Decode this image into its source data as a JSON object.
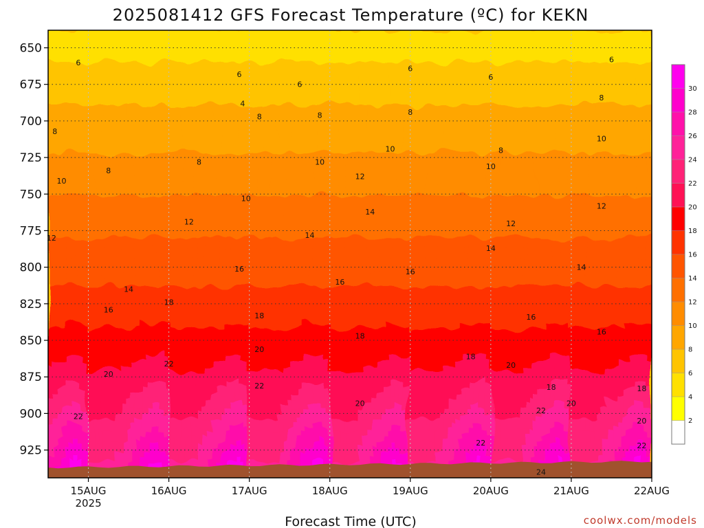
{
  "chart_data": {
    "type": "heatmap",
    "title": "2025081412 GFS Forecast Temperature (ºC) for KEKN",
    "xlabel": "Forecast Time (UTC)",
    "credit": "coolwx.com/models",
    "x_ticks": [
      {
        "label": "15AUG",
        "sub": "2025",
        "time": "2025-08-15T00"
      },
      {
        "label": "16AUG",
        "time": "2025-08-16T00"
      },
      {
        "label": "17AUG",
        "time": "2025-08-17T00"
      },
      {
        "label": "18AUG",
        "time": "2025-08-18T00"
      },
      {
        "label": "19AUG",
        "time": "2025-08-19T00"
      },
      {
        "label": "20AUG",
        "time": "2025-08-20T00"
      },
      {
        "label": "21AUG",
        "time": "2025-08-21T00"
      },
      {
        "label": "22AUG",
        "time": "2025-08-22T00"
      }
    ],
    "x_range": [
      "2025-08-14T12",
      "2025-08-22T00"
    ],
    "y_axis": {
      "inverted": true,
      "ylim": [
        944,
        638
      ],
      "ticks": [
        650,
        675,
        700,
        725,
        750,
        775,
        800,
        825,
        850,
        875,
        900,
        925
      ]
    },
    "grid": true,
    "colorbar": {
      "labels": [
        "2",
        "4",
        "6",
        "8",
        "10",
        "12",
        "14",
        "16",
        "18",
        "20",
        "22",
        "24",
        "26",
        "28",
        "30"
      ],
      "bands": [
        {
          "min": 0,
          "max": 2,
          "color": "#ffffff"
        },
        {
          "min": 2,
          "max": 4,
          "color": "#ffff00"
        },
        {
          "min": 4,
          "max": 6,
          "color": "#ffe000"
        },
        {
          "min": 6,
          "max": 8,
          "color": "#ffc400"
        },
        {
          "min": 8,
          "max": 10,
          "color": "#ffa600"
        },
        {
          "min": 10,
          "max": 12,
          "color": "#ff8c00"
        },
        {
          "min": 12,
          "max": 14,
          "color": "#ff7000"
        },
        {
          "min": 14,
          "max": 16,
          "color": "#ff5500"
        },
        {
          "min": 16,
          "max": 18,
          "color": "#ff3300"
        },
        {
          "min": 18,
          "max": 20,
          "color": "#ff0000"
        },
        {
          "min": 20,
          "max": 22,
          "color": "#ff1155"
        },
        {
          "min": 22,
          "max": 24,
          "color": "#ff2277"
        },
        {
          "min": 24,
          "max": 26,
          "color": "#ff2299"
        },
        {
          "min": 26,
          "max": 28,
          "color": "#ff11aa"
        },
        {
          "min": 28,
          "max": 30,
          "color": "#ff00cc"
        },
        {
          "min": 30,
          "max": 32,
          "color": "#ff00ee"
        }
      ]
    },
    "contour_levels": [
      4,
      6,
      8,
      10,
      12,
      14,
      16,
      18,
      20,
      22,
      24
    ],
    "contour_labels": [
      {
        "text": "6",
        "time": "2025-08-14T21",
        "p": 660
      },
      {
        "text": "6",
        "time": "2025-08-16T21",
        "p": 668
      },
      {
        "text": "6",
        "time": "2025-08-17T15",
        "p": 675
      },
      {
        "text": "6",
        "time": "2025-08-19T00",
        "p": 664
      },
      {
        "text": "6",
        "time": "2025-08-20T00",
        "p": 670
      },
      {
        "text": "6",
        "time": "2025-08-21T12",
        "p": 658
      },
      {
        "text": "4",
        "time": "2025-08-16T22",
        "p": 688
      },
      {
        "text": "8",
        "time": "2025-08-14T14",
        "p": 707
      },
      {
        "text": "8",
        "time": "2025-08-15T06",
        "p": 734
      },
      {
        "text": "8",
        "time": "2025-08-16T09",
        "p": 728
      },
      {
        "text": "8",
        "time": "2025-08-17T03",
        "p": 697
      },
      {
        "text": "8",
        "time": "2025-08-17T21",
        "p": 696
      },
      {
        "text": "8",
        "time": "2025-08-19T00",
        "p": 694
      },
      {
        "text": "8",
        "time": "2025-08-20T03",
        "p": 720
      },
      {
        "text": "8",
        "time": "2025-08-21T09",
        "p": 684
      },
      {
        "text": "10",
        "time": "2025-08-14T16",
        "p": 741
      },
      {
        "text": "10",
        "time": "2025-08-16T23",
        "p": 753
      },
      {
        "text": "10",
        "time": "2025-08-17T21",
        "p": 728
      },
      {
        "text": "10",
        "time": "2025-08-18T18",
        "p": 719
      },
      {
        "text": "10",
        "time": "2025-08-20T00",
        "p": 731
      },
      {
        "text": "10",
        "time": "2025-08-21T09",
        "p": 712
      },
      {
        "text": "12",
        "time": "2025-08-14T13",
        "p": 780
      },
      {
        "text": "12",
        "time": "2025-08-16T06",
        "p": 769
      },
      {
        "text": "12",
        "time": "2025-08-18T09",
        "p": 738
      },
      {
        "text": "12",
        "time": "2025-08-20T06",
        "p": 770
      },
      {
        "text": "12",
        "time": "2025-08-21T09",
        "p": 758
      },
      {
        "text": "14",
        "time": "2025-08-15T12",
        "p": 815
      },
      {
        "text": "14",
        "time": "2025-08-17T18",
        "p": 778
      },
      {
        "text": "14",
        "time": "2025-08-18T12",
        "p": 762
      },
      {
        "text": "14",
        "time": "2025-08-20T00",
        "p": 787
      },
      {
        "text": "14",
        "time": "2025-08-21T03",
        "p": 800
      },
      {
        "text": "16",
        "time": "2025-08-15T06",
        "p": 829
      },
      {
        "text": "16",
        "time": "2025-08-16T21",
        "p": 801
      },
      {
        "text": "16",
        "time": "2025-08-18T03",
        "p": 810
      },
      {
        "text": "16",
        "time": "2025-08-19T00",
        "p": 803
      },
      {
        "text": "16",
        "time": "2025-08-20T12",
        "p": 834
      },
      {
        "text": "16",
        "time": "2025-08-21T09",
        "p": 844
      },
      {
        "text": "18",
        "time": "2025-08-16T00",
        "p": 824
      },
      {
        "text": "18",
        "time": "2025-08-17T03",
        "p": 833
      },
      {
        "text": "18",
        "time": "2025-08-18T09",
        "p": 847
      },
      {
        "text": "18",
        "time": "2025-08-19T18",
        "p": 861
      },
      {
        "text": "18",
        "time": "2025-08-20T18",
        "p": 882
      },
      {
        "text": "18",
        "time": "2025-08-21T21",
        "p": 883
      },
      {
        "text": "20",
        "time": "2025-08-15T06",
        "p": 873
      },
      {
        "text": "20",
        "time": "2025-08-17T03",
        "p": 856
      },
      {
        "text": "20",
        "time": "2025-08-18T09",
        "p": 893
      },
      {
        "text": "20",
        "time": "2025-08-20T06",
        "p": 867
      },
      {
        "text": "20",
        "time": "2025-08-21T00",
        "p": 893
      },
      {
        "text": "20",
        "time": "2025-08-21T21",
        "p": 905
      },
      {
        "text": "22",
        "time": "2025-08-14T21",
        "p": 902
      },
      {
        "text": "22",
        "time": "2025-08-16T00",
        "p": 866
      },
      {
        "text": "22",
        "time": "2025-08-17T03",
        "p": 881
      },
      {
        "text": "22",
        "time": "2025-08-19T21",
        "p": 920
      },
      {
        "text": "22",
        "time": "2025-08-20T15",
        "p": 898
      },
      {
        "text": "22",
        "time": "2025-08-21T21",
        "p": 922
      },
      {
        "text": "24",
        "time": "2025-08-20T15",
        "p": 940
      }
    ]
  }
}
